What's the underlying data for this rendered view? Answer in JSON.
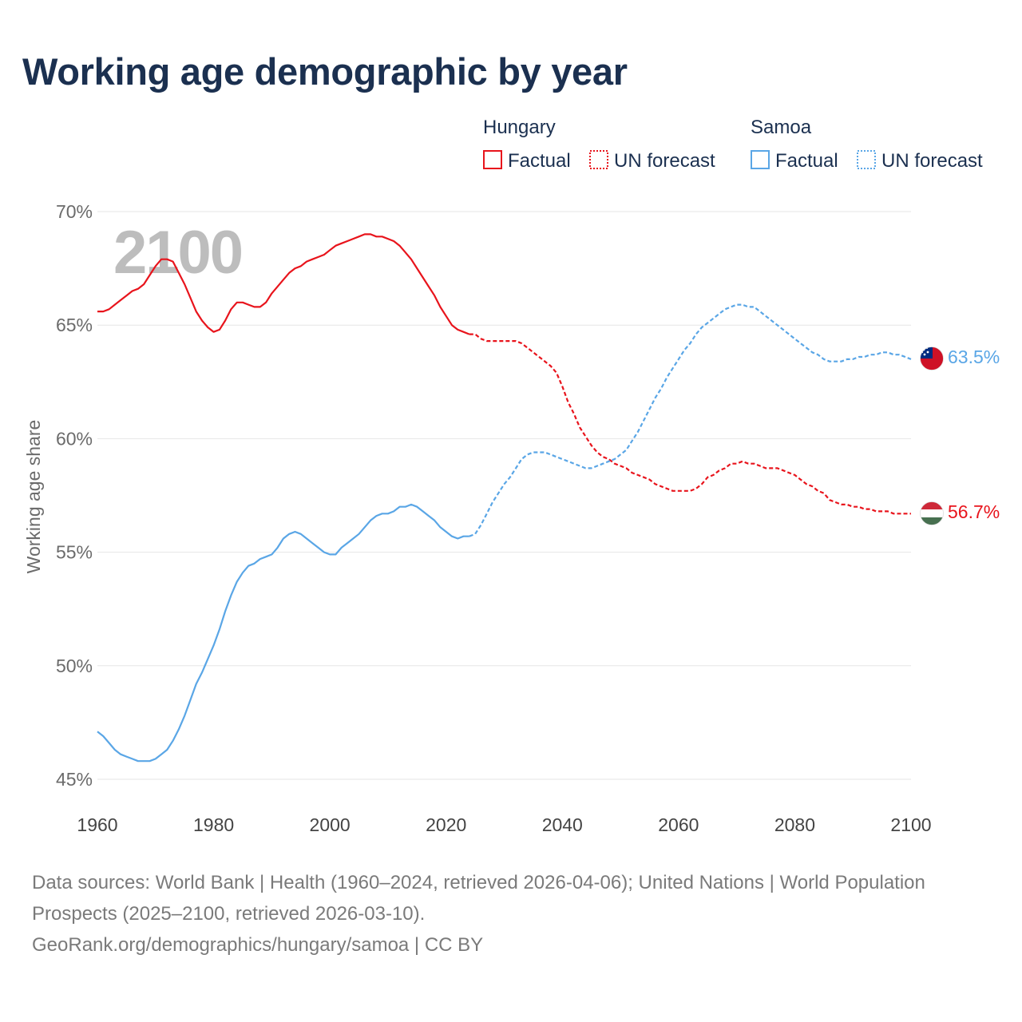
{
  "title": "Working age demographic by year",
  "footer": {
    "sources": "Data sources: World Bank | Health (1960–2024, retrieved 2026-04-06); United Nations | World Population Prospects (2025–2100, retrieved 2026-03-10).",
    "credit": "GeoRank.org/demographics/hungary/samoa | CC BY"
  },
  "colors": {
    "hungary": "#e8141c",
    "samoa": "#5aa6e6",
    "title": "#1b3050",
    "grid": "#e6e6e6"
  },
  "legend": [
    {
      "country": "Hungary",
      "items": [
        {
          "label": "Factual",
          "style": "solid",
          "color": "#e8141c"
        },
        {
          "label": "UN forecast",
          "style": "dotted",
          "color": "#e8141c"
        }
      ]
    },
    {
      "country": "Samoa",
      "items": [
        {
          "label": "Factual",
          "style": "solid",
          "color": "#5aa6e6"
        },
        {
          "label": "UN forecast",
          "style": "dotted",
          "color": "#5aa6e6"
        }
      ]
    }
  ],
  "chart_data": {
    "type": "line",
    "title": "Working age demographic by year",
    "xlabel": "",
    "ylabel": "Working age share",
    "xlim": [
      1960,
      2100
    ],
    "ylim": [
      45,
      70
    ],
    "x_ticks": [
      1960,
      1980,
      2000,
      2020,
      2040,
      2060,
      2080,
      2100
    ],
    "y_ticks": [
      45,
      50,
      55,
      60,
      65,
      70
    ],
    "y_tick_labels": [
      "45%",
      "50%",
      "55%",
      "60%",
      "65%",
      "70%"
    ],
    "grid": true,
    "animation_year": "2100",
    "forecast_start": 2024,
    "series": [
      {
        "name": "Hungary",
        "color": "#e8141c",
        "end_label": "56.7%",
        "flag": "hungary-flag-icon",
        "points": [
          [
            1960,
            65.6
          ],
          [
            1961,
            65.6
          ],
          [
            1962,
            65.7
          ],
          [
            1963,
            65.9
          ],
          [
            1964,
            66.1
          ],
          [
            1965,
            66.3
          ],
          [
            1966,
            66.5
          ],
          [
            1967,
            66.6
          ],
          [
            1968,
            66.8
          ],
          [
            1969,
            67.2
          ],
          [
            1970,
            67.6
          ],
          [
            1971,
            67.9
          ],
          [
            1972,
            67.9
          ],
          [
            1973,
            67.8
          ],
          [
            1974,
            67.3
          ],
          [
            1975,
            66.8
          ],
          [
            1976,
            66.2
          ],
          [
            1977,
            65.6
          ],
          [
            1978,
            65.2
          ],
          [
            1979,
            64.9
          ],
          [
            1980,
            64.7
          ],
          [
            1981,
            64.8
          ],
          [
            1982,
            65.2
          ],
          [
            1983,
            65.7
          ],
          [
            1984,
            66.0
          ],
          [
            1985,
            66.0
          ],
          [
            1986,
            65.9
          ],
          [
            1987,
            65.8
          ],
          [
            1988,
            65.8
          ],
          [
            1989,
            66.0
          ],
          [
            1990,
            66.4
          ],
          [
            1991,
            66.7
          ],
          [
            1992,
            67.0
          ],
          [
            1993,
            67.3
          ],
          [
            1994,
            67.5
          ],
          [
            1995,
            67.6
          ],
          [
            1996,
            67.8
          ],
          [
            1997,
            67.9
          ],
          [
            1998,
            68.0
          ],
          [
            1999,
            68.1
          ],
          [
            2000,
            68.3
          ],
          [
            2001,
            68.5
          ],
          [
            2002,
            68.6
          ],
          [
            2003,
            68.7
          ],
          [
            2004,
            68.8
          ],
          [
            2005,
            68.9
          ],
          [
            2006,
            69.0
          ],
          [
            2007,
            69.0
          ],
          [
            2008,
            68.9
          ],
          [
            2009,
            68.9
          ],
          [
            2010,
            68.8
          ],
          [
            2011,
            68.7
          ],
          [
            2012,
            68.5
          ],
          [
            2013,
            68.2
          ],
          [
            2014,
            67.9
          ],
          [
            2015,
            67.5
          ],
          [
            2016,
            67.1
          ],
          [
            2017,
            66.7
          ],
          [
            2018,
            66.3
          ],
          [
            2019,
            65.8
          ],
          [
            2020,
            65.4
          ],
          [
            2021,
            65.0
          ],
          [
            2022,
            64.8
          ],
          [
            2023,
            64.7
          ],
          [
            2024,
            64.6
          ],
          [
            2025,
            64.6
          ],
          [
            2026,
            64.4
          ],
          [
            2027,
            64.3
          ],
          [
            2028,
            64.3
          ],
          [
            2029,
            64.3
          ],
          [
            2030,
            64.3
          ],
          [
            2031,
            64.3
          ],
          [
            2032,
            64.3
          ],
          [
            2033,
            64.2
          ],
          [
            2034,
            64.0
          ],
          [
            2035,
            63.8
          ],
          [
            2036,
            63.6
          ],
          [
            2037,
            63.4
          ],
          [
            2038,
            63.2
          ],
          [
            2039,
            62.9
          ],
          [
            2040,
            62.3
          ],
          [
            2041,
            61.6
          ],
          [
            2042,
            61.1
          ],
          [
            2043,
            60.5
          ],
          [
            2044,
            60.1
          ],
          [
            2045,
            59.7
          ],
          [
            2046,
            59.4
          ],
          [
            2047,
            59.2
          ],
          [
            2048,
            59.1
          ],
          [
            2049,
            58.9
          ],
          [
            2050,
            58.8
          ],
          [
            2051,
            58.7
          ],
          [
            2052,
            58.5
          ],
          [
            2053,
            58.4
          ],
          [
            2054,
            58.3
          ],
          [
            2055,
            58.2
          ],
          [
            2056,
            58.0
          ],
          [
            2057,
            57.9
          ],
          [
            2058,
            57.8
          ],
          [
            2059,
            57.7
          ],
          [
            2060,
            57.7
          ],
          [
            2061,
            57.7
          ],
          [
            2062,
            57.7
          ],
          [
            2063,
            57.8
          ],
          [
            2064,
            58.0
          ],
          [
            2065,
            58.3
          ],
          [
            2066,
            58.4
          ],
          [
            2067,
            58.6
          ],
          [
            2068,
            58.7
          ],
          [
            2069,
            58.9
          ],
          [
            2070,
            58.9
          ],
          [
            2071,
            59.0
          ],
          [
            2072,
            58.9
          ],
          [
            2073,
            58.9
          ],
          [
            2074,
            58.8
          ],
          [
            2075,
            58.7
          ],
          [
            2076,
            58.7
          ],
          [
            2077,
            58.7
          ],
          [
            2078,
            58.6
          ],
          [
            2079,
            58.5
          ],
          [
            2080,
            58.4
          ],
          [
            2081,
            58.2
          ],
          [
            2082,
            58.0
          ],
          [
            2083,
            57.9
          ],
          [
            2084,
            57.7
          ],
          [
            2085,
            57.6
          ],
          [
            2086,
            57.3
          ],
          [
            2087,
            57.2
          ],
          [
            2088,
            57.1
          ],
          [
            2089,
            57.1
          ],
          [
            2090,
            57.0
          ],
          [
            2091,
            57.0
          ],
          [
            2092,
            56.9
          ],
          [
            2093,
            56.9
          ],
          [
            2094,
            56.8
          ],
          [
            2095,
            56.8
          ],
          [
            2096,
            56.8
          ],
          [
            2097,
            56.7
          ],
          [
            2098,
            56.7
          ],
          [
            2099,
            56.7
          ],
          [
            2100,
            56.7
          ]
        ]
      },
      {
        "name": "Samoa",
        "color": "#5aa6e6",
        "end_label": "63.5%",
        "flag": "samoa-flag-icon",
        "points": [
          [
            1960,
            47.1
          ],
          [
            1961,
            46.9
          ],
          [
            1962,
            46.6
          ],
          [
            1963,
            46.3
          ],
          [
            1964,
            46.1
          ],
          [
            1965,
            46.0
          ],
          [
            1966,
            45.9
          ],
          [
            1967,
            45.8
          ],
          [
            1968,
            45.8
          ],
          [
            1969,
            45.8
          ],
          [
            1970,
            45.9
          ],
          [
            1971,
            46.1
          ],
          [
            1972,
            46.3
          ],
          [
            1973,
            46.7
          ],
          [
            1974,
            47.2
          ],
          [
            1975,
            47.8
          ],
          [
            1976,
            48.5
          ],
          [
            1977,
            49.2
          ],
          [
            1978,
            49.7
          ],
          [
            1979,
            50.3
          ],
          [
            1980,
            50.9
          ],
          [
            1981,
            51.6
          ],
          [
            1982,
            52.4
          ],
          [
            1983,
            53.1
          ],
          [
            1984,
            53.7
          ],
          [
            1985,
            54.1
          ],
          [
            1986,
            54.4
          ],
          [
            1987,
            54.5
          ],
          [
            1988,
            54.7
          ],
          [
            1989,
            54.8
          ],
          [
            1990,
            54.9
          ],
          [
            1991,
            55.2
          ],
          [
            1992,
            55.6
          ],
          [
            1993,
            55.8
          ],
          [
            1994,
            55.9
          ],
          [
            1995,
            55.8
          ],
          [
            1996,
            55.6
          ],
          [
            1997,
            55.4
          ],
          [
            1998,
            55.2
          ],
          [
            1999,
            55.0
          ],
          [
            2000,
            54.9
          ],
          [
            2001,
            54.9
          ],
          [
            2002,
            55.2
          ],
          [
            2003,
            55.4
          ],
          [
            2004,
            55.6
          ],
          [
            2005,
            55.8
          ],
          [
            2006,
            56.1
          ],
          [
            2007,
            56.4
          ],
          [
            2008,
            56.6
          ],
          [
            2009,
            56.7
          ],
          [
            2010,
            56.7
          ],
          [
            2011,
            56.8
          ],
          [
            2012,
            57.0
          ],
          [
            2013,
            57.0
          ],
          [
            2014,
            57.1
          ],
          [
            2015,
            57.0
          ],
          [
            2016,
            56.8
          ],
          [
            2017,
            56.6
          ],
          [
            2018,
            56.4
          ],
          [
            2019,
            56.1
          ],
          [
            2020,
            55.9
          ],
          [
            2021,
            55.7
          ],
          [
            2022,
            55.6
          ],
          [
            2023,
            55.7
          ],
          [
            2024,
            55.7
          ],
          [
            2025,
            55.8
          ],
          [
            2026,
            56.2
          ],
          [
            2027,
            56.7
          ],
          [
            2028,
            57.2
          ],
          [
            2029,
            57.6
          ],
          [
            2030,
            58.0
          ],
          [
            2031,
            58.3
          ],
          [
            2032,
            58.7
          ],
          [
            2033,
            59.1
          ],
          [
            2034,
            59.3
          ],
          [
            2035,
            59.4
          ],
          [
            2036,
            59.4
          ],
          [
            2037,
            59.4
          ],
          [
            2038,
            59.3
          ],
          [
            2039,
            59.2
          ],
          [
            2040,
            59.1
          ],
          [
            2041,
            59.0
          ],
          [
            2042,
            58.9
          ],
          [
            2043,
            58.8
          ],
          [
            2044,
            58.7
          ],
          [
            2045,
            58.7
          ],
          [
            2046,
            58.8
          ],
          [
            2047,
            58.9
          ],
          [
            2048,
            59.0
          ],
          [
            2049,
            59.1
          ],
          [
            2050,
            59.3
          ],
          [
            2051,
            59.5
          ],
          [
            2052,
            59.9
          ],
          [
            2053,
            60.3
          ],
          [
            2054,
            60.8
          ],
          [
            2055,
            61.3
          ],
          [
            2056,
            61.8
          ],
          [
            2057,
            62.2
          ],
          [
            2058,
            62.7
          ],
          [
            2059,
            63.1
          ],
          [
            2060,
            63.5
          ],
          [
            2061,
            63.9
          ],
          [
            2062,
            64.2
          ],
          [
            2063,
            64.6
          ],
          [
            2064,
            64.9
          ],
          [
            2065,
            65.1
          ],
          [
            2066,
            65.3
          ],
          [
            2067,
            65.5
          ],
          [
            2068,
            65.7
          ],
          [
            2069,
            65.8
          ],
          [
            2070,
            65.9
          ],
          [
            2071,
            65.9
          ],
          [
            2072,
            65.8
          ],
          [
            2073,
            65.8
          ],
          [
            2074,
            65.6
          ],
          [
            2075,
            65.4
          ],
          [
            2076,
            65.2
          ],
          [
            2077,
            65.0
          ],
          [
            2078,
            64.8
          ],
          [
            2079,
            64.6
          ],
          [
            2080,
            64.4
          ],
          [
            2081,
            64.2
          ],
          [
            2082,
            64.0
          ],
          [
            2083,
            63.8
          ],
          [
            2084,
            63.7
          ],
          [
            2085,
            63.5
          ],
          [
            2086,
            63.4
          ],
          [
            2087,
            63.4
          ],
          [
            2088,
            63.4
          ],
          [
            2089,
            63.5
          ],
          [
            2090,
            63.5
          ],
          [
            2091,
            63.6
          ],
          [
            2092,
            63.6
          ],
          [
            2093,
            63.7
          ],
          [
            2094,
            63.7
          ],
          [
            2095,
            63.8
          ],
          [
            2096,
            63.8
          ],
          [
            2097,
            63.7
          ],
          [
            2098,
            63.7
          ],
          [
            2099,
            63.6
          ],
          [
            2100,
            63.5
          ]
        ]
      }
    ]
  }
}
